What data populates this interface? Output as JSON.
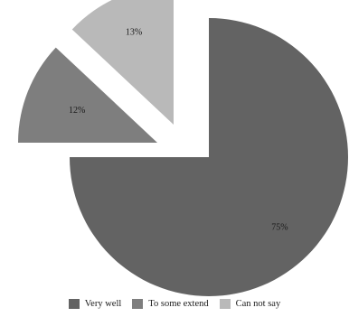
{
  "chart_data": {
    "type": "pie",
    "title": "",
    "exploded": true,
    "slices": [
      {
        "name": "Very well",
        "value": 75,
        "label": "75%",
        "color": "#636363"
      },
      {
        "name": "To some extend",
        "value": 12,
        "label": "12%",
        "color": "#7e7e7e"
      },
      {
        "name": "Can not say",
        "value": 13,
        "label": "13%",
        "color": "#b9b9b9"
      }
    ],
    "legend_position": "bottom"
  }
}
